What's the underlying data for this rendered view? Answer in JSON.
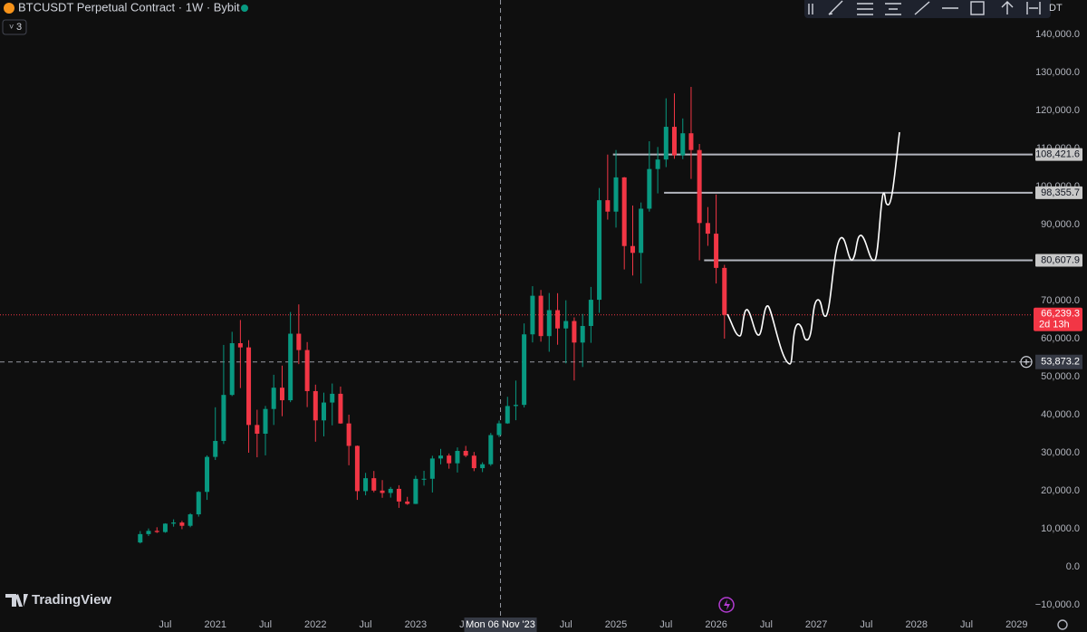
{
  "header": {
    "title": "BTCUSDT Perpetual Contract · 1W · Bybit",
    "indicator_count": "3",
    "symbol_fragment": "DT"
  },
  "branding": "TradingView",
  "chart_data": {
    "type": "candlestick",
    "up_color": "#089981",
    "down_color": "#f23645",
    "x": [
      2020.25,
      2020.333,
      2020.417,
      2020.5,
      2020.583,
      2020.667,
      2020.75,
      2020.833,
      2020.917,
      2021,
      2021.083,
      2021.167,
      2021.25,
      2021.333,
      2021.417,
      2021.5,
      2021.583,
      2021.667,
      2021.75,
      2021.833,
      2021.917,
      2022,
      2022.083,
      2022.167,
      2022.25,
      2022.333,
      2022.417,
      2022.5,
      2022.583,
      2022.667,
      2022.75,
      2022.833,
      2022.917,
      2023,
      2023.083,
      2023.167,
      2023.25,
      2023.333,
      2023.417,
      2023.5,
      2023.583,
      2023.667,
      2023.75,
      2023.833,
      2023.917,
      2024,
      2024.083,
      2024.167,
      2024.25,
      2024.333,
      2024.417,
      2024.5,
      2024.583,
      2024.667,
      2024.75,
      2024.833,
      2024.917,
      2025,
      2025.083,
      2025.167,
      2025.25,
      2025.333,
      2025.417,
      2025.5,
      2025.583,
      2025.667,
      2025.75,
      2025.833,
      2025.917,
      2026,
      2026.083
    ],
    "candles": [
      [
        6400,
        9400,
        6150,
        8600
      ],
      [
        8600,
        10080,
        8100,
        9450
      ],
      [
        9450,
        10400,
        8900,
        9140
      ],
      [
        9140,
        11450,
        8950,
        11350
      ],
      [
        11350,
        12480,
        10550,
        11650
      ],
      [
        11650,
        12080,
        9900,
        10780
      ],
      [
        10780,
        14100,
        10400,
        13800
      ],
      [
        13800,
        19900,
        13200,
        19700
      ],
      [
        19700,
        29300,
        17600,
        28900
      ],
      [
        28900,
        41950,
        28100,
        33100
      ],
      [
        33100,
        58350,
        32300,
        45200
      ],
      [
        45200,
        61800,
        44900,
        58800
      ],
      [
        58800,
        64900,
        47000,
        57700
      ],
      [
        57700,
        59600,
        30000,
        37300
      ],
      [
        37300,
        41300,
        28800,
        35000
      ],
      [
        35000,
        42300,
        29300,
        41500
      ],
      [
        41500,
        50500,
        37300,
        47100
      ],
      [
        47100,
        52900,
        39600,
        43800
      ],
      [
        43800,
        67000,
        43300,
        61300
      ],
      [
        61300,
        69000,
        53300,
        57000
      ],
      [
        57000,
        59100,
        42000,
        46200
      ],
      [
        46200,
        47900,
        32900,
        38500
      ],
      [
        38500,
        45800,
        34300,
        43200
      ],
      [
        43200,
        48200,
        37200,
        45500
      ],
      [
        45500,
        47400,
        37600,
        37700
      ],
      [
        37700,
        40000,
        26700,
        31800
      ],
      [
        31800,
        31900,
        17600,
        19900
      ],
      [
        19900,
        24700,
        18800,
        23300
      ],
      [
        23300,
        25200,
        19600,
        20050
      ],
      [
        20050,
        22800,
        18150,
        19420
      ],
      [
        19420,
        21000,
        18200,
        20500
      ],
      [
        20500,
        21450,
        15500,
        17170
      ],
      [
        17170,
        18400,
        16300,
        16540
      ],
      [
        16540,
        23950,
        16500,
        23130
      ],
      [
        23130,
        25250,
        21350,
        23150
      ],
      [
        23150,
        29200,
        19550,
        28480
      ],
      [
        28480,
        31000,
        26950,
        29250
      ],
      [
        29250,
        29800,
        25800,
        27220
      ],
      [
        27220,
        31400,
        24800,
        30480
      ],
      [
        30480,
        31800,
        28850,
        29230
      ],
      [
        29230,
        30200,
        25150,
        25940
      ],
      [
        25940,
        27480,
        24900,
        26970
      ],
      [
        26970,
        35200,
        26550,
        34640
      ],
      [
        34640,
        38450,
        34100,
        37720
      ],
      [
        37720,
        44700,
        37600,
        42280
      ],
      [
        42280,
        48970,
        38550,
        42580
      ],
      [
        42580,
        64000,
        41900,
        61130
      ],
      [
        61130,
        73800,
        59000,
        71280
      ],
      [
        71280,
        72800,
        59200,
        60670
      ],
      [
        60670,
        72000,
        56550,
        67490
      ],
      [
        67490,
        71950,
        58400,
        62680
      ],
      [
        62680,
        70080,
        53500,
        64630
      ],
      [
        64630,
        65600,
        49000,
        58970
      ],
      [
        58970,
        66500,
        52550,
        63330
      ],
      [
        63330,
        73600,
        58900,
        70220
      ],
      [
        70220,
        99600,
        66800,
        96400
      ],
      [
        96400,
        108400,
        91300,
        93400
      ],
      [
        93400,
        109600,
        89200,
        102400
      ],
      [
        102400,
        102500,
        78200,
        84350
      ],
      [
        84350,
        95000,
        76600,
        82550
      ],
      [
        82550,
        95800,
        74500,
        94170
      ],
      [
        94170,
        111900,
        93400,
        104600
      ],
      [
        104600,
        110400,
        98200,
        107100
      ],
      [
        107100,
        123200,
        105100,
        115700
      ],
      [
        115700,
        124500,
        107300,
        108200
      ],
      [
        108200,
        117900,
        107200,
        114000
      ],
      [
        114000,
        126200,
        102000,
        109600
      ],
      [
        109600,
        111200,
        80600,
        90400
      ],
      [
        90400,
        94600,
        84400,
        87600
      ],
      [
        87600,
        97900,
        74500,
        78600
      ],
      [
        78600,
        79400,
        60000,
        66239.3
      ]
    ],
    "xlim": [
      2018.85,
      2029.16
    ],
    "ylim": [
      -12857,
      149048
    ],
    "xticks": [
      {
        "value": 2020.5,
        "label": "Jul"
      },
      2021,
      {
        "value": 2021.5,
        "label": "Jul"
      },
      2022,
      {
        "value": 2022.5,
        "label": "Jul"
      },
      2023,
      {
        "value": 2023.5,
        "label": "Jul"
      },
      {
        "value": 2024.5,
        "label": "Jul"
      },
      2025,
      {
        "value": 2025.5,
        "label": "Jul"
      },
      2026,
      {
        "value": 2026.5,
        "label": "Jul"
      },
      2027,
      {
        "value": 2027.5,
        "label": "Jul"
      },
      2028,
      {
        "value": 2028.5,
        "label": "Jul"
      },
      2029
    ],
    "yticks": [
      {
        "value": -10000,
        "label": "−10,000.0"
      },
      {
        "value": 0,
        "label": "0.0"
      },
      {
        "value": 10000,
        "label": "10,000.0"
      },
      {
        "value": 20000,
        "label": "20,000.0"
      },
      {
        "value": 30000,
        "label": "30,000.0"
      },
      {
        "value": 40000,
        "label": "40,000.0"
      },
      {
        "value": 50000,
        "label": "50,000.0"
      },
      {
        "value": 60000,
        "label": "60,000.0"
      },
      {
        "value": 70000,
        "label": "70,000.0"
      },
      {
        "value": 80000,
        "label": "80,000.0"
      },
      {
        "value": 90000,
        "label": "90,000.0"
      },
      {
        "value": 100000,
        "label": "100,000.0"
      },
      {
        "value": 110000,
        "label": "110,000.0"
      },
      {
        "value": 120000,
        "label": "120,000.0"
      },
      {
        "value": 130000,
        "label": "130,000.0"
      },
      {
        "value": 140000,
        "label": "140,000.0"
      }
    ],
    "levels": [
      {
        "value": 108421.6,
        "label": "108,421.6",
        "from": 2024.97
      },
      {
        "value": 98355.7,
        "label": "98,355.7",
        "from": 2025.48
      },
      {
        "value": 80607.9,
        "label": "80,607.9",
        "from": 2025.88
      }
    ],
    "last_price": {
      "value": 66239.3,
      "label": "66,239.3",
      "countdown": "2d 13h"
    },
    "crosshair": {
      "y": 53873.2,
      "y_label": "53,873.2",
      "x": 2023.847,
      "x_label": "Mon 06 Nov '23"
    }
  }
}
